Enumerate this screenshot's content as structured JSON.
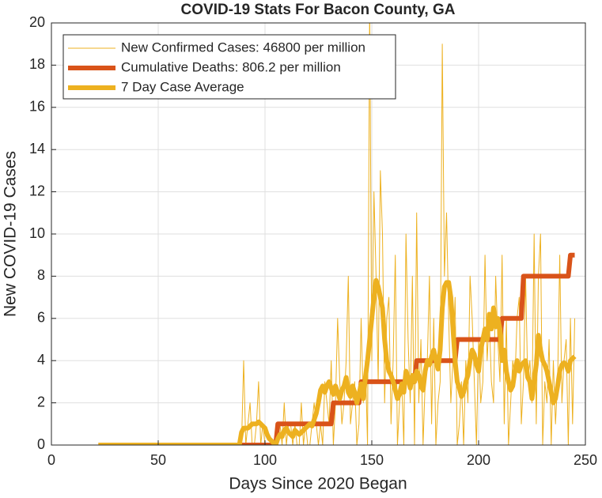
{
  "chart_data": {
    "type": "line",
    "title": "COVID-19 Stats For Bacon County, GA",
    "xlabel": "Days Since 2020 Began",
    "ylabel": "New COVID-19 Cases",
    "xlim": [
      0,
      250
    ],
    "xticks": [
      0,
      50,
      100,
      150,
      200,
      250
    ],
    "ylim": [
      0,
      20
    ],
    "yticks": [
      0,
      2,
      4,
      6,
      8,
      10,
      12,
      14,
      16,
      18,
      20
    ],
    "grid": true,
    "legend": "upper left",
    "x": [
      22,
      23,
      24,
      25,
      26,
      27,
      28,
      29,
      30,
      31,
      32,
      33,
      34,
      35,
      36,
      37,
      38,
      39,
      40,
      41,
      42,
      43,
      44,
      45,
      46,
      47,
      48,
      49,
      50,
      51,
      52,
      53,
      54,
      55,
      56,
      57,
      58,
      59,
      60,
      61,
      62,
      63,
      64,
      65,
      66,
      67,
      68,
      69,
      70,
      71,
      72,
      73,
      74,
      75,
      76,
      77,
      78,
      79,
      80,
      81,
      82,
      83,
      84,
      85,
      86,
      87,
      88,
      89,
      90,
      91,
      92,
      93,
      94,
      95,
      96,
      97,
      98,
      99,
      100,
      101,
      102,
      103,
      104,
      105,
      106,
      107,
      108,
      109,
      110,
      111,
      112,
      113,
      114,
      115,
      116,
      117,
      118,
      119,
      120,
      121,
      122,
      123,
      124,
      125,
      126,
      127,
      128,
      129,
      130,
      131,
      132,
      133,
      134,
      135,
      136,
      137,
      138,
      139,
      140,
      141,
      142,
      143,
      144,
      145,
      146,
      147,
      148,
      149,
      150,
      151,
      152,
      153,
      154,
      155,
      156,
      157,
      158,
      159,
      160,
      161,
      162,
      163,
      164,
      165,
      166,
      167,
      168,
      169,
      170,
      171,
      172,
      173,
      174,
      175,
      176,
      177,
      178,
      179,
      180,
      181,
      182,
      183,
      184,
      185,
      186,
      187,
      188,
      189,
      190,
      191,
      192,
      193,
      194,
      195,
      196,
      197,
      198,
      199,
      200,
      201,
      202,
      203,
      204,
      205,
      206,
      207,
      208,
      209,
      210,
      211,
      212,
      213,
      214,
      215,
      216,
      217,
      218,
      219,
      220,
      221,
      222,
      223,
      224,
      225,
      226,
      227,
      228,
      229,
      230,
      231,
      232,
      233,
      234,
      235,
      236,
      237,
      238,
      239,
      240,
      241,
      242,
      243,
      244,
      245
    ],
    "series": [
      {
        "name": "New Confirmed Cases: 46800 per million",
        "color": "#EDB120",
        "width": 1,
        "values": [
          0,
          0,
          0,
          0,
          0,
          0,
          0,
          0,
          0,
          0,
          0,
          0,
          0,
          0,
          0,
          0,
          0,
          0,
          0,
          0,
          0,
          0,
          0,
          0,
          0,
          0,
          0,
          0,
          0,
          0,
          0,
          0,
          0,
          0,
          0,
          0,
          0,
          0,
          0,
          0,
          0,
          0,
          0,
          0,
          0,
          0,
          0,
          0,
          0,
          0,
          0,
          0,
          0,
          0,
          0,
          0,
          0,
          0,
          0,
          0,
          0,
          0,
          0,
          0,
          0,
          0,
          0,
          0,
          4,
          0,
          1,
          2,
          0,
          0,
          1,
          3,
          0,
          1,
          0,
          0,
          0,
          0,
          0,
          0,
          0,
          1,
          0,
          2,
          0,
          1,
          1,
          0,
          1,
          0,
          0,
          2,
          0,
          1,
          0,
          0,
          1,
          2,
          1,
          0,
          1,
          0,
          3,
          2,
          1,
          4,
          0,
          2,
          6,
          3,
          1,
          2,
          4,
          8,
          1,
          2,
          3,
          0,
          1,
          6,
          2,
          4,
          0,
          21,
          4,
          12,
          8,
          3,
          13,
          10,
          2,
          6,
          7,
          1,
          4,
          9,
          0,
          2,
          3,
          0,
          10,
          5,
          2,
          8,
          0,
          11,
          2,
          5,
          0,
          3,
          4,
          8,
          1,
          6,
          0,
          2,
          3,
          19,
          8,
          11,
          6,
          2,
          4,
          7,
          0,
          1,
          3,
          0,
          4,
          2,
          8,
          6,
          3,
          0,
          5,
          2,
          3,
          9,
          4,
          6,
          3,
          2,
          8,
          5,
          3,
          9,
          1,
          6,
          0,
          2,
          4,
          3,
          6,
          7,
          1,
          3,
          8,
          3,
          4,
          2,
          10,
          1,
          8,
          10,
          0,
          3,
          2,
          5,
          0,
          4,
          1,
          3,
          9,
          2,
          4,
          5,
          0,
          6,
          1,
          6
        ]
      },
      {
        "name": "Cumulative Deaths: 806.2 per million",
        "color": "#D95319",
        "width": 6,
        "values": [
          0,
          0,
          0,
          0,
          0,
          0,
          0,
          0,
          0,
          0,
          0,
          0,
          0,
          0,
          0,
          0,
          0,
          0,
          0,
          0,
          0,
          0,
          0,
          0,
          0,
          0,
          0,
          0,
          0,
          0,
          0,
          0,
          0,
          0,
          0,
          0,
          0,
          0,
          0,
          0,
          0,
          0,
          0,
          0,
          0,
          0,
          0,
          0,
          0,
          0,
          0,
          0,
          0,
          0,
          0,
          0,
          0,
          0,
          0,
          0,
          0,
          0,
          0,
          0,
          0,
          0,
          0,
          0,
          0,
          0,
          0,
          0,
          0,
          0,
          0,
          0,
          0,
          0,
          0,
          0,
          0,
          0,
          0,
          0,
          1,
          1,
          1,
          1,
          1,
          1,
          1,
          1,
          1,
          1,
          1,
          1,
          1,
          1,
          1,
          1,
          1,
          1,
          1,
          1,
          1,
          1,
          1,
          1,
          1,
          1,
          2,
          2,
          2,
          2,
          2,
          2,
          2,
          2,
          2,
          2,
          2,
          2,
          2,
          3,
          3,
          3,
          3,
          3,
          3,
          3,
          3,
          3,
          3,
          3,
          3,
          3,
          3,
          3,
          3,
          3,
          3,
          3,
          3,
          3,
          3,
          3,
          3,
          3,
          3,
          4,
          4,
          4,
          4,
          4,
          4,
          4,
          4,
          4,
          4,
          4,
          4,
          4,
          4,
          4,
          4,
          4,
          4,
          4,
          5,
          5,
          5,
          5,
          5,
          5,
          5,
          5,
          5,
          5,
          5,
          5,
          5,
          5,
          5,
          5,
          5,
          5,
          5,
          5,
          5,
          6,
          6,
          6,
          6,
          6,
          6,
          6,
          6,
          6,
          6,
          8,
          8,
          8,
          8,
          8,
          8,
          8,
          8,
          8,
          8,
          8,
          8,
          8,
          8,
          8,
          8,
          8,
          8,
          8,
          8,
          8,
          8,
          9,
          9,
          9
        ]
      },
      {
        "name": "7 Day Case Average",
        "color": "#EDB120",
        "width": 6,
        "values": [
          0,
          0,
          0,
          0,
          0,
          0,
          0,
          0,
          0,
          0,
          0,
          0,
          0,
          0,
          0,
          0,
          0,
          0,
          0,
          0,
          0,
          0,
          0,
          0,
          0,
          0,
          0,
          0,
          0,
          0,
          0,
          0,
          0,
          0,
          0,
          0,
          0,
          0,
          0,
          0,
          0,
          0,
          0,
          0,
          0,
          0,
          0,
          0,
          0,
          0,
          0,
          0,
          0,
          0,
          0,
          0,
          0,
          0,
          0,
          0,
          0,
          0,
          0,
          0,
          0,
          0,
          0,
          0.6,
          0.8,
          0.8,
          0.8,
          0.9,
          1,
          1,
          1,
          1.1,
          1,
          0.9,
          0.8,
          0.5,
          0.3,
          0.2,
          0.1,
          0,
          0.3,
          0.5,
          0.4,
          0.7,
          0.8,
          0.6,
          0.5,
          0.4,
          0.7,
          0.6,
          0.5,
          0.6,
          0.7,
          0.8,
          0.9,
          1,
          0.9,
          1.2,
          1.5,
          2,
          2.6,
          2.8,
          2.5,
          2.8,
          3,
          2.7,
          2.4,
          2.8,
          2.5,
          2.2,
          2.6,
          2.8,
          3.2,
          2.5,
          2.3,
          2.8,
          2.5,
          2,
          2.4,
          2.9,
          2.2,
          3.2,
          4,
          5,
          6,
          7,
          7.8,
          7.5,
          7,
          6.5,
          5,
          4,
          3.5,
          3.3,
          3,
          2.6,
          2.2,
          2.4,
          2.9,
          2.5,
          3.5,
          3.2,
          2.7,
          3.3,
          3,
          3.5,
          3.3,
          2.8,
          2.6,
          3.5,
          4,
          3.8,
          4.2,
          4.5,
          4,
          3.6,
          4.5,
          6.5,
          7.5,
          7.7,
          7.7,
          7,
          5.5,
          4,
          3,
          2.7,
          2.3,
          2.5,
          3,
          3.3,
          4,
          4.5,
          4.3,
          3.8,
          3.5,
          4.5,
          5,
          5.5,
          5,
          6.2,
          5.5,
          6.5,
          5.6,
          6,
          5.5,
          4,
          4.5,
          3.5,
          3,
          2.6,
          2.8,
          3.5,
          4,
          3.5,
          3.8,
          3.9,
          4,
          3.2,
          3,
          2.2,
          3,
          3.8,
          5.2,
          4.5,
          4,
          3.8,
          3.5,
          3,
          2.5,
          2,
          2.2,
          2.8,
          3.5,
          3.8,
          3.9,
          3.8,
          3.5,
          4,
          4.1,
          4.2
        ]
      }
    ]
  }
}
